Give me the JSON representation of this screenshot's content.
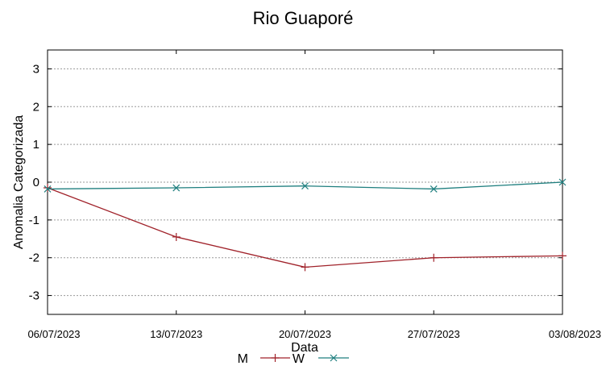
{
  "chart_data": {
    "type": "line",
    "title": "Rio Guaporé",
    "xlabel": "Data",
    "ylabel": "Anomalia Categorizada",
    "ylim": [
      -3.5,
      3.5
    ],
    "yticks": [
      3,
      2,
      1,
      0,
      -1,
      -2,
      -3
    ],
    "categories": [
      "06/07/2023",
      "13/07/2023",
      "20/07/2023",
      "27/07/2023",
      "03/08/2023"
    ],
    "grid": true,
    "legend_position": "bottom",
    "series": [
      {
        "name": "M",
        "color": "#a0222a",
        "marker": "plus",
        "values": [
          -0.15,
          -1.45,
          -2.25,
          -2.0,
          -1.95
        ]
      },
      {
        "name": "W",
        "color": "#1f7f7f",
        "marker": "cross",
        "values": [
          -0.18,
          -0.15,
          -0.1,
          -0.18,
          0.0
        ]
      }
    ]
  }
}
